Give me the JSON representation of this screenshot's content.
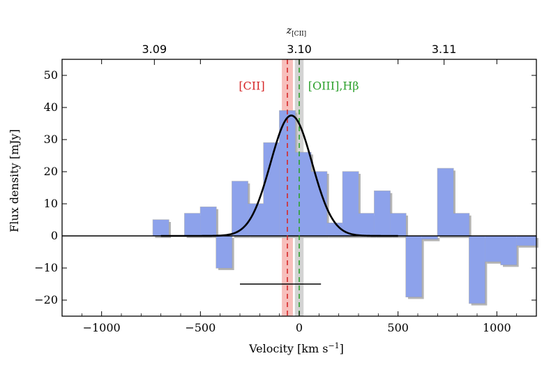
{
  "chart_data": {
    "type": "histogram",
    "xlabel_main": "Velocity [km s",
    "xlabel_sup": "−1",
    "xlabel_tail": "]",
    "ylabel": "Flux density [mJy]",
    "top_axis_label_base": "z",
    "top_axis_label_sub": "[CII]",
    "xlim": [
      -1200,
      1200
    ],
    "ylim": [
      -25,
      55
    ],
    "x_ticks": [
      -1000,
      -500,
      0,
      500,
      1000
    ],
    "x_tick_labels": [
      "−1000",
      "−500",
      "0",
      "500",
      "1000"
    ],
    "y_ticks": [
      -20,
      -10,
      0,
      10,
      20,
      30,
      40,
      50
    ],
    "y_tick_labels": [
      "−20",
      "−10",
      "0",
      "10",
      "20",
      "30",
      "40",
      "50"
    ],
    "top_ticks": [
      3.09,
      3.1,
      3.11
    ],
    "top_tick_labels": [
      "3.09",
      "3.10",
      "3.11"
    ],
    "top_tick_velocities": [
      -733,
      0,
      733
    ],
    "bins": {
      "edges": [
        -740,
        -660,
        -580,
        -500,
        -420,
        -340,
        -260,
        -180,
        -100,
        -20,
        60,
        140,
        220,
        300,
        380,
        460,
        540,
        620,
        700,
        780,
        860,
        940,
        1020,
        1100,
        1200
      ],
      "values": [
        5,
        0,
        7,
        9,
        -10,
        17,
        10,
        29,
        39,
        26,
        20,
        4,
        20,
        7,
        14,
        7,
        -19,
        -1,
        21,
        7,
        -21,
        -8,
        -9,
        -3
      ]
    },
    "gaussian_fit": {
      "amplitude": 37.5,
      "center": -40,
      "sigma": 105,
      "x_range": [
        -700,
        500
      ]
    },
    "lines": [
      {
        "name": "[CII]",
        "velocity": -60,
        "band_halfwidth": 28,
        "color": "#d62728"
      },
      {
        "name": "[OIII],Hβ",
        "velocity": 0,
        "band_halfwidth": 22,
        "color": "#2ca02c"
      }
    ],
    "fwhm_bar": {
      "y": -15,
      "x_range": [
        -300,
        110
      ]
    },
    "colors": {
      "fill": "#8da2eb",
      "shadow": "#b5b5b5",
      "fit": "#000000",
      "red": "#d62728",
      "green": "#2ca02c"
    }
  }
}
